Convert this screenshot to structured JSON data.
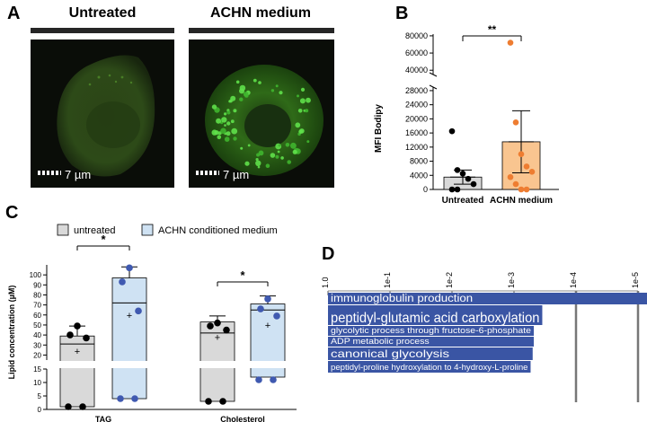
{
  "panels": {
    "a": "A",
    "b": "B",
    "c": "C",
    "d": "D"
  },
  "micrographs": [
    {
      "title": "Untreated",
      "scale_label": "7 µm"
    },
    {
      "title": "ACHN medium",
      "scale_label": "7 µm"
    }
  ],
  "colors": {
    "untreated_bar_b": "#d9d9d9",
    "achn_bar_b": "#f9c590",
    "achn_point_b": "#ee7d31",
    "untreated_box_c": "#d9d9d9",
    "achn_box_c": "#cfe2f3",
    "achn_point_c": "#3f59b0",
    "go_bar": "#3a55a4"
  },
  "chart_data": [
    {
      "type": "bar",
      "panel": "B",
      "ylabel": "MFI Bodipy",
      "categories": [
        "Untreated",
        "ACHN medium"
      ],
      "values": [
        3500,
        13500
      ],
      "error": [
        2000,
        8800
      ],
      "significance": "**",
      "yticks_lower": [
        "0",
        "4000",
        "8000",
        "12000",
        "16000",
        "20000",
        "24000",
        "28000"
      ],
      "yticks_upper": [
        "40000",
        "60000",
        "80000"
      ],
      "ylim_lower": [
        0,
        29000
      ],
      "ylim_upper": [
        35000,
        82000
      ],
      "points": [
        [
          16500,
          5500,
          4500,
          3000,
          1500,
          0,
          0
        ],
        [
          72000,
          19000,
          10000,
          6500,
          5000,
          3500,
          1500,
          0,
          0
        ]
      ]
    },
    {
      "type": "box",
      "panel": "C",
      "ylabel": "Lipid concentration (µM)",
      "legend": [
        "untreated",
        "ACHN conditioned medium"
      ],
      "groups": [
        "TAG",
        "Cholesterol"
      ],
      "yticks_upper": [
        "20",
        "30",
        "40",
        "50",
        "60",
        "70",
        "80",
        "90",
        "100"
      ],
      "yticks_lower": [
        "0",
        "5",
        "10",
        "15"
      ],
      "ylim_upper": [
        15,
        110
      ],
      "ylim_lower": [
        0,
        15
      ],
      "significance": [
        "*",
        "*"
      ],
      "boxes": [
        {
          "group": "TAG",
          "series": "untreated",
          "min": 1,
          "q1": 1,
          "median": 31,
          "q3": 39,
          "max": 49,
          "mean": 24,
          "points": [
            49,
            40,
            37,
            1,
            1
          ]
        },
        {
          "group": "TAG",
          "series": "ACHN conditioned medium",
          "min": 4,
          "q1": 4,
          "median": 72,
          "q3": 97,
          "max": 108,
          "mean": 60,
          "points": [
            107,
            93,
            64,
            4,
            4
          ]
        },
        {
          "group": "Cholesterol",
          "series": "untreated",
          "min": 3,
          "q1": 3,
          "median": 42,
          "q3": 53,
          "max": 59,
          "mean": 38,
          "points": [
            52,
            49,
            45,
            3,
            3
          ]
        },
        {
          "group": "Cholesterol",
          "series": "ACHN conditioned medium",
          "min": 11,
          "q1": 12,
          "median": 65,
          "q3": 71,
          "max": 79,
          "mean": 50,
          "points": [
            76,
            66,
            59,
            11,
            11
          ]
        }
      ]
    },
    {
      "type": "bar",
      "panel": "D",
      "orientation": "horizontal",
      "axis_scale": "log",
      "xticks": [
        "1.0",
        "1e-1",
        "1e-2",
        "1e-3",
        "1e-4",
        "1e-5"
      ],
      "categories": [
        "immunoglobulin production",
        "peptidyl-glutamic acid carboxylation",
        "glycolytic process through fructose-6-phosphate",
        "ADP metabolic process",
        "canonical glycolysis",
        "peptidyl-proline hydroxylation to 4-hydroxy-L-proline"
      ],
      "values": [
        6.5e-06,
        0.00035,
        0.00048,
        0.00048,
        0.0005,
        0.00054
      ]
    }
  ]
}
